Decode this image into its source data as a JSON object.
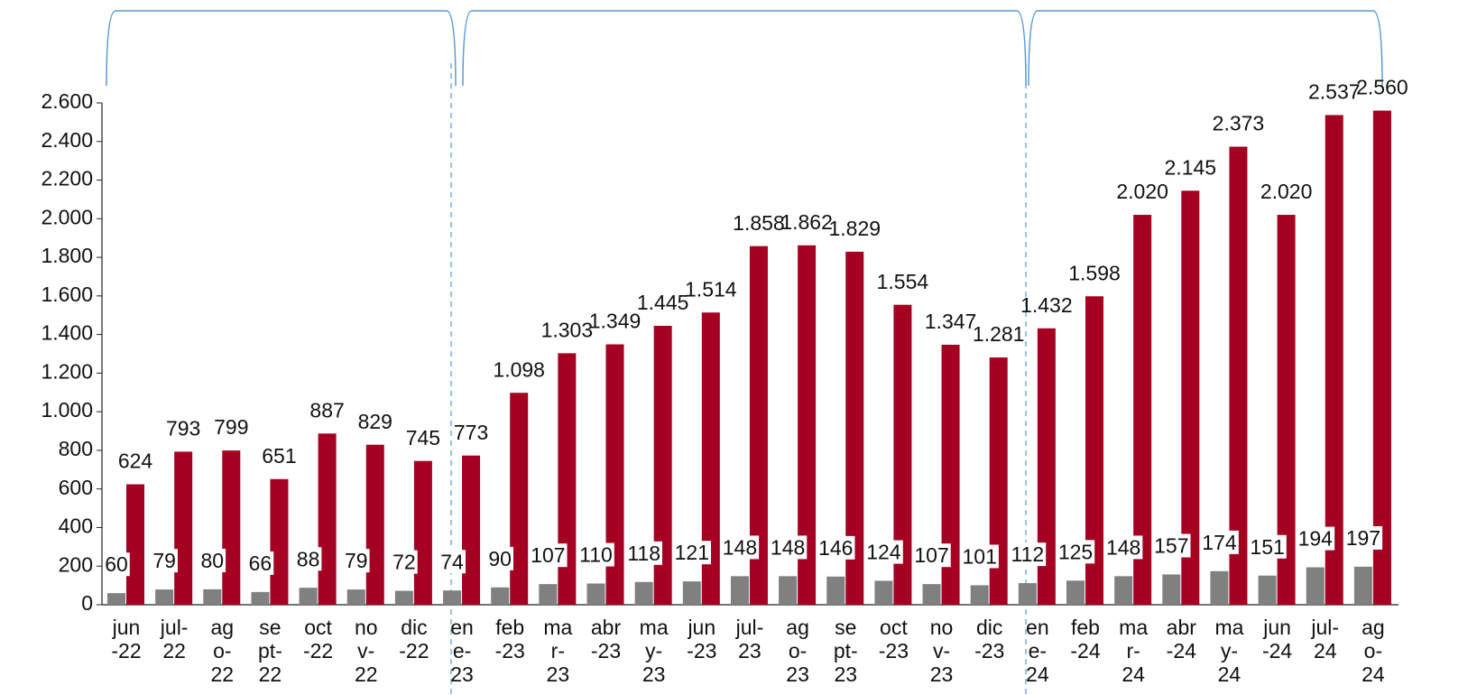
{
  "chart_data": {
    "type": "bar",
    "categories": [
      "jun-22",
      "jul-22",
      "ago-22",
      "sept-22",
      "oct-22",
      "nov-22",
      "dic-22",
      "ene-23",
      "feb-23",
      "mar-23",
      "abr-23",
      "may-23",
      "jun-23",
      "jul-23",
      "ago-23",
      "sept-23",
      "oct-23",
      "nov-23",
      "dic-23",
      "ene-24",
      "feb-24",
      "mar-24",
      "abr-24",
      "may-24",
      "jun-24",
      "jul-24",
      "ago-24"
    ],
    "series": [
      {
        "color": "#808080",
        "values": [
          60,
          79,
          80,
          66,
          88,
          79,
          72,
          74,
          90,
          107,
          110,
          118,
          121,
          148,
          148,
          146,
          124,
          107,
          101,
          112,
          125,
          148,
          157,
          174,
          151,
          194,
          197
        ]
      },
      {
        "color": "#a50021",
        "values": [
          624,
          793,
          799,
          651,
          887,
          829,
          745,
          773,
          1098,
          1303,
          1349,
          1445,
          1514,
          1858,
          1862,
          1829,
          1554,
          1347,
          1281,
          1432,
          1598,
          2020,
          2145,
          2373,
          2020,
          2537,
          2560
        ],
        "value_labels": [
          "624",
          "793",
          "799",
          "651",
          "887",
          "829",
          "745",
          "773",
          "1.098",
          "1.303",
          "1.349",
          "1.445",
          "1.514",
          "1.858",
          "1.862",
          "1.829",
          "1.554",
          "1.347",
          "1.281",
          "1.432",
          "1.598",
          "2.020",
          "2.145",
          "2.373",
          "2.020",
          "2.537",
          "2.560"
        ]
      }
    ],
    "ylim": [
      0,
      2600
    ],
    "yticks": [
      0,
      200,
      400,
      600,
      800,
      {
        "value": 1000,
        "label": "1.000"
      },
      {
        "value": 1200,
        "label": "1.200"
      },
      {
        "value": 1400,
        "label": "1.400"
      },
      {
        "value": 1600,
        "label": "1.600"
      },
      {
        "value": 1800,
        "label": "1.800"
      },
      {
        "value": 2000,
        "label": "2.000"
      },
      {
        "value": 2200,
        "label": "2.200"
      },
      {
        "value": 2400,
        "label": "2.400"
      },
      {
        "value": 2600,
        "label": "2.600"
      }
    ]
  }
}
